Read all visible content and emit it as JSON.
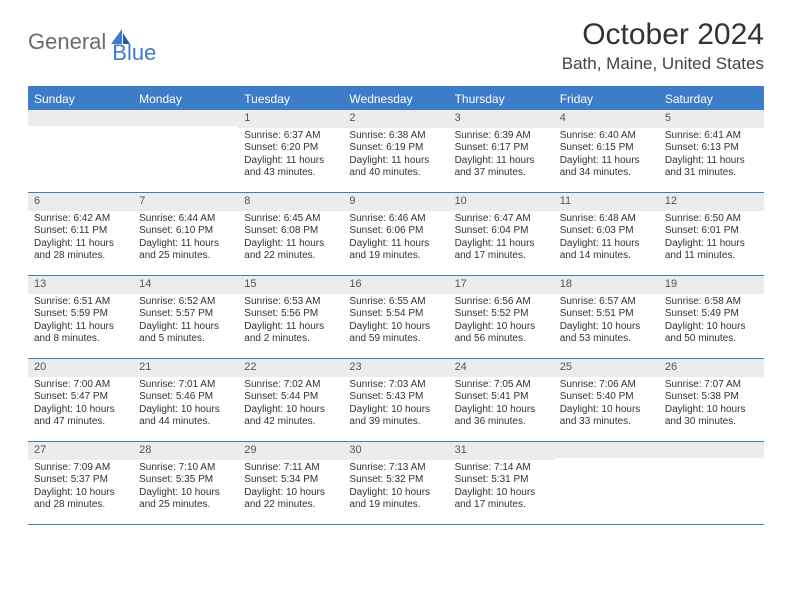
{
  "brand": {
    "part1": "General",
    "part2": "Blue"
  },
  "title": "October 2024",
  "location": "Bath, Maine, United States",
  "colors": {
    "accent": "#3d7cc9",
    "num_row_bg": "#ececec",
    "text": "#333333",
    "logo_gray": "#6b6b6b",
    "background": "#ffffff"
  },
  "day_names": [
    "Sunday",
    "Monday",
    "Tuesday",
    "Wednesday",
    "Thursday",
    "Friday",
    "Saturday"
  ],
  "weeks": [
    [
      {
        "n": "",
        "sr": "",
        "ss": "",
        "dl1": "",
        "dl2": ""
      },
      {
        "n": "",
        "sr": "",
        "ss": "",
        "dl1": "",
        "dl2": ""
      },
      {
        "n": "1",
        "sr": "Sunrise: 6:37 AM",
        "ss": "Sunset: 6:20 PM",
        "dl1": "Daylight: 11 hours",
        "dl2": "and 43 minutes."
      },
      {
        "n": "2",
        "sr": "Sunrise: 6:38 AM",
        "ss": "Sunset: 6:19 PM",
        "dl1": "Daylight: 11 hours",
        "dl2": "and 40 minutes."
      },
      {
        "n": "3",
        "sr": "Sunrise: 6:39 AM",
        "ss": "Sunset: 6:17 PM",
        "dl1": "Daylight: 11 hours",
        "dl2": "and 37 minutes."
      },
      {
        "n": "4",
        "sr": "Sunrise: 6:40 AM",
        "ss": "Sunset: 6:15 PM",
        "dl1": "Daylight: 11 hours",
        "dl2": "and 34 minutes."
      },
      {
        "n": "5",
        "sr": "Sunrise: 6:41 AM",
        "ss": "Sunset: 6:13 PM",
        "dl1": "Daylight: 11 hours",
        "dl2": "and 31 minutes."
      }
    ],
    [
      {
        "n": "6",
        "sr": "Sunrise: 6:42 AM",
        "ss": "Sunset: 6:11 PM",
        "dl1": "Daylight: 11 hours",
        "dl2": "and 28 minutes."
      },
      {
        "n": "7",
        "sr": "Sunrise: 6:44 AM",
        "ss": "Sunset: 6:10 PM",
        "dl1": "Daylight: 11 hours",
        "dl2": "and 25 minutes."
      },
      {
        "n": "8",
        "sr": "Sunrise: 6:45 AM",
        "ss": "Sunset: 6:08 PM",
        "dl1": "Daylight: 11 hours",
        "dl2": "and 22 minutes."
      },
      {
        "n": "9",
        "sr": "Sunrise: 6:46 AM",
        "ss": "Sunset: 6:06 PM",
        "dl1": "Daylight: 11 hours",
        "dl2": "and 19 minutes."
      },
      {
        "n": "10",
        "sr": "Sunrise: 6:47 AM",
        "ss": "Sunset: 6:04 PM",
        "dl1": "Daylight: 11 hours",
        "dl2": "and 17 minutes."
      },
      {
        "n": "11",
        "sr": "Sunrise: 6:48 AM",
        "ss": "Sunset: 6:03 PM",
        "dl1": "Daylight: 11 hours",
        "dl2": "and 14 minutes."
      },
      {
        "n": "12",
        "sr": "Sunrise: 6:50 AM",
        "ss": "Sunset: 6:01 PM",
        "dl1": "Daylight: 11 hours",
        "dl2": "and 11 minutes."
      }
    ],
    [
      {
        "n": "13",
        "sr": "Sunrise: 6:51 AM",
        "ss": "Sunset: 5:59 PM",
        "dl1": "Daylight: 11 hours",
        "dl2": "and 8 minutes."
      },
      {
        "n": "14",
        "sr": "Sunrise: 6:52 AM",
        "ss": "Sunset: 5:57 PM",
        "dl1": "Daylight: 11 hours",
        "dl2": "and 5 minutes."
      },
      {
        "n": "15",
        "sr": "Sunrise: 6:53 AM",
        "ss": "Sunset: 5:56 PM",
        "dl1": "Daylight: 11 hours",
        "dl2": "and 2 minutes."
      },
      {
        "n": "16",
        "sr": "Sunrise: 6:55 AM",
        "ss": "Sunset: 5:54 PM",
        "dl1": "Daylight: 10 hours",
        "dl2": "and 59 minutes."
      },
      {
        "n": "17",
        "sr": "Sunrise: 6:56 AM",
        "ss": "Sunset: 5:52 PM",
        "dl1": "Daylight: 10 hours",
        "dl2": "and 56 minutes."
      },
      {
        "n": "18",
        "sr": "Sunrise: 6:57 AM",
        "ss": "Sunset: 5:51 PM",
        "dl1": "Daylight: 10 hours",
        "dl2": "and 53 minutes."
      },
      {
        "n": "19",
        "sr": "Sunrise: 6:58 AM",
        "ss": "Sunset: 5:49 PM",
        "dl1": "Daylight: 10 hours",
        "dl2": "and 50 minutes."
      }
    ],
    [
      {
        "n": "20",
        "sr": "Sunrise: 7:00 AM",
        "ss": "Sunset: 5:47 PM",
        "dl1": "Daylight: 10 hours",
        "dl2": "and 47 minutes."
      },
      {
        "n": "21",
        "sr": "Sunrise: 7:01 AM",
        "ss": "Sunset: 5:46 PM",
        "dl1": "Daylight: 10 hours",
        "dl2": "and 44 minutes."
      },
      {
        "n": "22",
        "sr": "Sunrise: 7:02 AM",
        "ss": "Sunset: 5:44 PM",
        "dl1": "Daylight: 10 hours",
        "dl2": "and 42 minutes."
      },
      {
        "n": "23",
        "sr": "Sunrise: 7:03 AM",
        "ss": "Sunset: 5:43 PM",
        "dl1": "Daylight: 10 hours",
        "dl2": "and 39 minutes."
      },
      {
        "n": "24",
        "sr": "Sunrise: 7:05 AM",
        "ss": "Sunset: 5:41 PM",
        "dl1": "Daylight: 10 hours",
        "dl2": "and 36 minutes."
      },
      {
        "n": "25",
        "sr": "Sunrise: 7:06 AM",
        "ss": "Sunset: 5:40 PM",
        "dl1": "Daylight: 10 hours",
        "dl2": "and 33 minutes."
      },
      {
        "n": "26",
        "sr": "Sunrise: 7:07 AM",
        "ss": "Sunset: 5:38 PM",
        "dl1": "Daylight: 10 hours",
        "dl2": "and 30 minutes."
      }
    ],
    [
      {
        "n": "27",
        "sr": "Sunrise: 7:09 AM",
        "ss": "Sunset: 5:37 PM",
        "dl1": "Daylight: 10 hours",
        "dl2": "and 28 minutes."
      },
      {
        "n": "28",
        "sr": "Sunrise: 7:10 AM",
        "ss": "Sunset: 5:35 PM",
        "dl1": "Daylight: 10 hours",
        "dl2": "and 25 minutes."
      },
      {
        "n": "29",
        "sr": "Sunrise: 7:11 AM",
        "ss": "Sunset: 5:34 PM",
        "dl1": "Daylight: 10 hours",
        "dl2": "and 22 minutes."
      },
      {
        "n": "30",
        "sr": "Sunrise: 7:13 AM",
        "ss": "Sunset: 5:32 PM",
        "dl1": "Daylight: 10 hours",
        "dl2": "and 19 minutes."
      },
      {
        "n": "31",
        "sr": "Sunrise: 7:14 AM",
        "ss": "Sunset: 5:31 PM",
        "dl1": "Daylight: 10 hours",
        "dl2": "and 17 minutes."
      },
      {
        "n": "",
        "sr": "",
        "ss": "",
        "dl1": "",
        "dl2": ""
      },
      {
        "n": "",
        "sr": "",
        "ss": "",
        "dl1": "",
        "dl2": ""
      }
    ]
  ]
}
